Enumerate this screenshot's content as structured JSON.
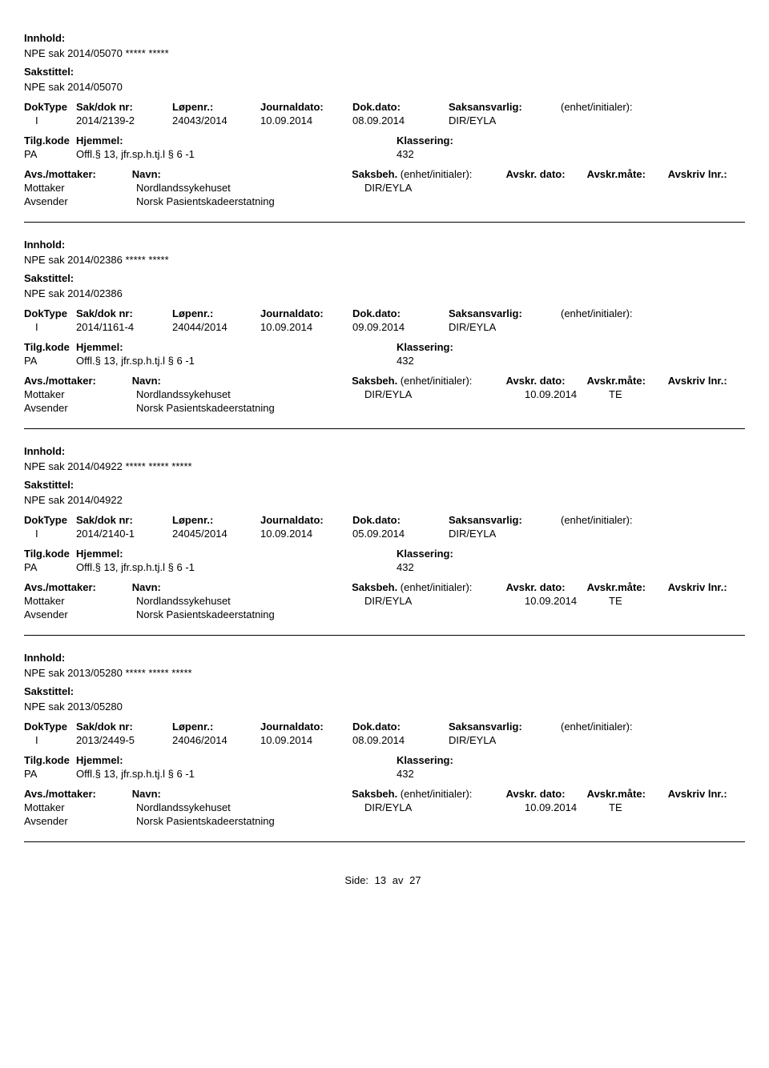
{
  "labels": {
    "innhold": "Innhold:",
    "sakstittel": "Sakstittel:",
    "doktype": "DokType",
    "sakdok": "Sak/dok nr:",
    "lopenr": "Løpenr.:",
    "journaldato": "Journaldato:",
    "dokdato": "Dok.dato:",
    "saksansvarlig": "Saksansvarlig:",
    "enhet": "(enhet/initialer):",
    "tilgkode": "Tilg.kode",
    "hjemmel": "Hjemmel:",
    "klassering": "Klassering:",
    "avsmottaker": "Avs./mottaker:",
    "navn": "Navn:",
    "saksbeh": "Saksbeh.",
    "saksbeh_enhet": "(enhet/initialer):",
    "avskrdato": "Avskr. dato:",
    "avskrmate": "Avskr.måte:",
    "avskrivlnr": "Avskriv lnr.:",
    "mottaker": "Mottaker",
    "avsender": "Avsender"
  },
  "records": [
    {
      "innhold": "NPE sak 2014/05070 ***** *****",
      "sakstittel": "NPE sak 2014/05070",
      "doktype": "I",
      "sakdok": "2014/2139-2",
      "lopenr": "24043/2014",
      "journaldato": "10.09.2014",
      "dokdato": "08.09.2014",
      "saksansvarlig": "DIR/EYLA",
      "enhet": "",
      "tilgkode": "PA",
      "hjemmel": "Offl.§ 13, jfr.sp.h.tj.l § 6 -1",
      "klassering": "432",
      "mottaker_navn": "Nordlandssykehuset",
      "avsender_navn": "Norsk Pasientskadeerstatning",
      "saksbeh_val": "DIR/EYLA",
      "avskrdato": "",
      "avskrmate": "",
      "avskrivlnr": ""
    },
    {
      "innhold": "NPE sak 2014/02386 ***** *****",
      "sakstittel": "NPE sak 2014/02386",
      "doktype": "I",
      "sakdok": "2014/1161-4",
      "lopenr": "24044/2014",
      "journaldato": "10.09.2014",
      "dokdato": "09.09.2014",
      "saksansvarlig": "DIR/EYLA",
      "enhet": "",
      "tilgkode": "PA",
      "hjemmel": "Offl.§ 13, jfr.sp.h.tj.l § 6 -1",
      "klassering": "432",
      "mottaker_navn": "Nordlandssykehuset",
      "avsender_navn": "Norsk Pasientskadeerstatning",
      "saksbeh_val": "DIR/EYLA",
      "avskrdato": "10.09.2014",
      "avskrmate": "TE",
      "avskrivlnr": ""
    },
    {
      "innhold": "NPE sak 2014/04922 ***** ***** *****",
      "sakstittel": "NPE sak 2014/04922",
      "doktype": "I",
      "sakdok": "2014/2140-1",
      "lopenr": "24045/2014",
      "journaldato": "10.09.2014",
      "dokdato": "05.09.2014",
      "saksansvarlig": "DIR/EYLA",
      "enhet": "",
      "tilgkode": "PA",
      "hjemmel": "Offl.§ 13, jfr.sp.h.tj.l § 6 -1",
      "klassering": "432",
      "mottaker_navn": "Nordlandssykehuset",
      "avsender_navn": "Norsk Pasientskadeerstatning",
      "saksbeh_val": "DIR/EYLA",
      "avskrdato": "10.09.2014",
      "avskrmate": "TE",
      "avskrivlnr": ""
    },
    {
      "innhold": "NPE sak 2013/05280 ***** ***** *****",
      "sakstittel": "NPE sak 2013/05280",
      "doktype": "I",
      "sakdok": "2013/2449-5",
      "lopenr": "24046/2014",
      "journaldato": "10.09.2014",
      "dokdato": "08.09.2014",
      "saksansvarlig": "DIR/EYLA",
      "enhet": "",
      "tilgkode": "PA",
      "hjemmel": "Offl.§ 13, jfr.sp.h.tj.l § 6 -1",
      "klassering": "432",
      "mottaker_navn": "Nordlandssykehuset",
      "avsender_navn": "Norsk Pasientskadeerstatning",
      "saksbeh_val": "DIR/EYLA",
      "avskrdato": "10.09.2014",
      "avskrmate": "TE",
      "avskrivlnr": ""
    }
  ],
  "footer": {
    "side_label": "Side:",
    "page": "13",
    "av": "av",
    "total": "27"
  }
}
